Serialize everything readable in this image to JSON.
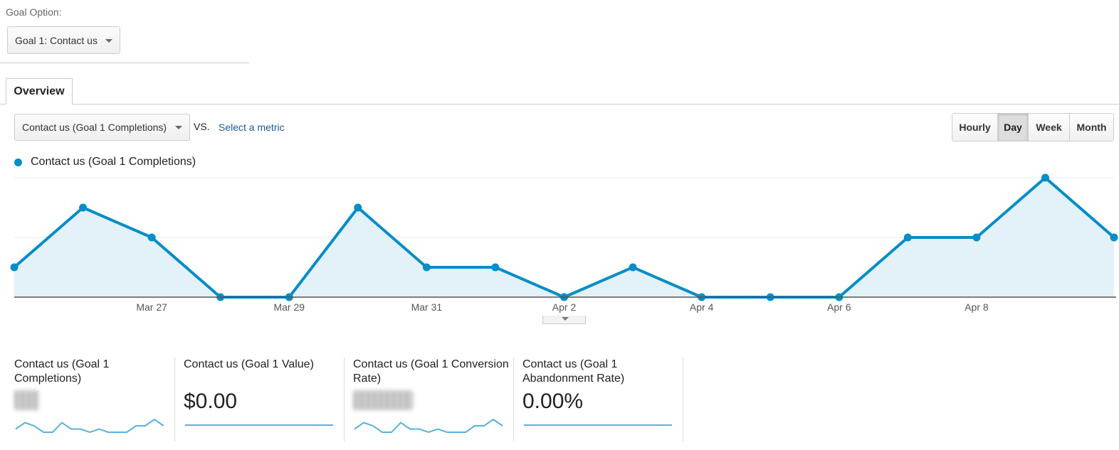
{
  "goal_option": {
    "label": "Goal Option:",
    "selected": "Goal 1: Contact us"
  },
  "tabs": [
    {
      "label": "Overview",
      "active": true
    }
  ],
  "metric_row": {
    "primary_metric": "Contact us (Goal 1 Completions)",
    "vs_label": "VS.",
    "secondary_metric_link": "Select a metric"
  },
  "granularity": {
    "options": [
      "Hourly",
      "Day",
      "Week",
      "Month"
    ],
    "active": "Day"
  },
  "colors": {
    "series": "#058dc7",
    "fill": "#e3f1f8",
    "sparkline": "#5ab2dc"
  },
  "chart_data": {
    "type": "area",
    "series": [
      {
        "name": "Contact us (Goal 1 Completions)",
        "x": [
          "Mar 25",
          "Mar 26",
          "Mar 27",
          "Mar 28",
          "Mar 29",
          "Mar 30",
          "Mar 31",
          "Apr 1",
          "Apr 2",
          "Apr 3",
          "Apr 4",
          "Apr 5",
          "Apr 6",
          "Apr 7",
          "Apr 8",
          "Apr 9",
          "Apr 10"
        ],
        "values": [
          1,
          3,
          2,
          0,
          0,
          3,
          1,
          1,
          0,
          1,
          0,
          0,
          0,
          2,
          2,
          4,
          2
        ]
      }
    ],
    "x_tick_labels": [
      "Mar 27",
      "Mar 29",
      "Mar 31",
      "Apr 2",
      "Apr 4",
      "Apr 6",
      "Apr 8"
    ],
    "y_tick_labels": [
      "",
      ""
    ],
    "ylim": [
      0,
      4
    ],
    "grid": true,
    "legend": "top-left"
  },
  "scorecards": [
    {
      "title": "Contact us (Goal 1 Completions)",
      "value": "",
      "value_obscured": true,
      "sparkline": [
        1,
        3,
        2,
        0,
        0,
        3,
        1,
        1,
        0,
        1,
        0,
        0,
        0,
        2,
        2,
        4,
        2
      ]
    },
    {
      "title": "Contact us (Goal 1 Value)",
      "value": "$0.00",
      "value_obscured": false,
      "sparkline": [
        0,
        0
      ]
    },
    {
      "title": "Contact us (Goal 1 Conversion Rate)",
      "value": "",
      "value_obscured": true,
      "sparkline": [
        1,
        3,
        2,
        0,
        0,
        3,
        1,
        1,
        0,
        1,
        0,
        0,
        0,
        2,
        2,
        4,
        2
      ]
    },
    {
      "title": "Contact us (Goal 1 Abandonment Rate)",
      "value": "0.00%",
      "value_obscured": false,
      "sparkline": [
        0,
        0
      ]
    }
  ]
}
